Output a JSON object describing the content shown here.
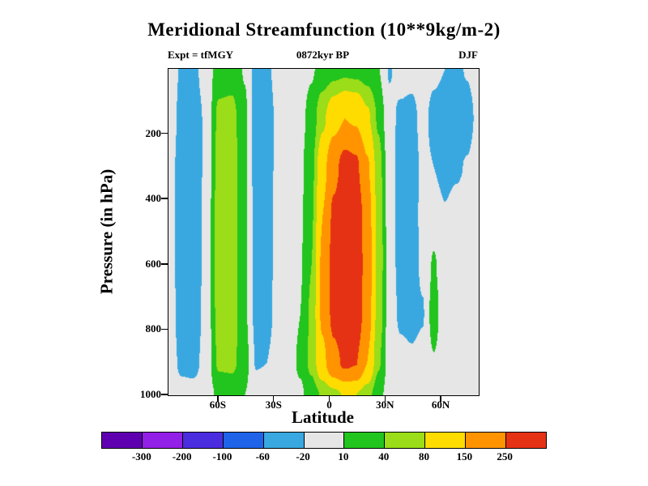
{
  "page": {
    "background": "#ffffff"
  },
  "header": {
    "title": "Meridional Streamfunction (10**9kg/m-2)",
    "left_annotation": "Expt = tfMGY",
    "center_annotation": "0872kyr BP",
    "right_annotation": "DJF"
  },
  "chart_data": {
    "type": "heatmap",
    "title": "Meridional Streamfunction (10**9kg/m-2)",
    "subtitle_left": "Expt = tfMGY",
    "subtitle_center": "0872kyr BP",
    "subtitle_right": "DJF",
    "xlabel": "Latitude",
    "ylabel": "Pressure (in hPa)",
    "xlim": [
      -87,
      80
    ],
    "ylim": [
      0,
      1000
    ],
    "background_color": "#e6e6e6",
    "x_ticks": [
      {
        "value": -60,
        "label": "60S"
      },
      {
        "value": -30,
        "label": "30S"
      },
      {
        "value": 0,
        "label": "0"
      },
      {
        "value": 30,
        "label": "30N"
      },
      {
        "value": 60,
        "label": "60N"
      }
    ],
    "y_ticks": [
      {
        "value": 200,
        "label": "200"
      },
      {
        "value": 400,
        "label": "400"
      },
      {
        "value": 600,
        "label": "600"
      },
      {
        "value": 800,
        "label": "800"
      },
      {
        "value": 1000,
        "label": "1000"
      }
    ],
    "levels": [
      -300,
      -200,
      -100,
      -60,
      -20,
      10,
      40,
      80,
      150,
      250
    ],
    "colors": [
      "#5e00b0",
      "#9320e6",
      "#4b2de0",
      "#1f64e8",
      "#39a8e0",
      "#e6e6e6",
      "#22c41e",
      "#9add18",
      "#ffdc00",
      "#ff9400",
      "#e63214"
    ],
    "colorbar_labels": [
      "-300",
      "-200",
      "-100",
      "-60",
      "-20",
      "10",
      "40",
      "80",
      "150",
      "250"
    ],
    "grid": {
      "lats": [
        -87,
        -80,
        -74,
        -67,
        -60,
        -53,
        -46,
        -40,
        -34,
        -28,
        -22,
        -16,
        -10,
        -4,
        2,
        8,
        14,
        20,
        26,
        32,
        38,
        44,
        50,
        56,
        62,
        68,
        74,
        80
      ],
      "pressures": [
        0,
        150,
        300,
        450,
        600,
        750,
        900,
        1000
      ],
      "values": [
        [
          0,
          -25,
          -28,
          -8,
          25,
          28,
          8,
          -30,
          -26,
          -8,
          -2,
          2,
          8,
          18,
          26,
          30,
          28,
          22,
          12,
          -22,
          -10,
          -12,
          -5,
          -15,
          -20,
          -26,
          -18,
          -6
        ],
        [
          -2,
          -30,
          -35,
          -16,
          48,
          50,
          16,
          -34,
          -34,
          -12,
          -2,
          4,
          18,
          70,
          120,
          150,
          140,
          90,
          35,
          -12,
          -25,
          -28,
          -12,
          -28,
          -34,
          -38,
          -32,
          -12
        ],
        [
          -3,
          -38,
          -40,
          -15,
          54,
          56,
          16,
          -33,
          -35,
          -10,
          -2,
          5,
          28,
          120,
          220,
          290,
          270,
          160,
          55,
          -8,
          -32,
          -34,
          -14,
          -20,
          -28,
          -24,
          -18,
          -6
        ],
        [
          -3,
          -38,
          -40,
          -12,
          55,
          57,
          14,
          -30,
          -33,
          -8,
          0,
          6,
          34,
          150,
          270,
          335,
          325,
          190,
          65,
          -6,
          -33,
          -35,
          -12,
          -8,
          -18,
          -10,
          -6,
          0
        ],
        [
          -3,
          -38,
          -40,
          -12,
          55,
          57,
          14,
          -30,
          -32,
          -8,
          0,
          8,
          40,
          165,
          290,
          345,
          335,
          200,
          65,
          -5,
          -30,
          -33,
          -15,
          14,
          -14,
          -6,
          -2,
          0
        ],
        [
          -3,
          -36,
          -38,
          -12,
          54,
          56,
          15,
          -28,
          -30,
          -8,
          0,
          10,
          46,
          165,
          280,
          335,
          325,
          190,
          60,
          -4,
          -25,
          -28,
          -22,
          26,
          -16,
          -5,
          0,
          0
        ],
        [
          -2,
          -28,
          -30,
          -10,
          46,
          48,
          22,
          -22,
          -20,
          -5,
          2,
          14,
          50,
          130,
          220,
          270,
          255,
          150,
          45,
          -2,
          -12,
          -16,
          -12,
          8,
          -10,
          -3,
          0,
          0
        ],
        [
          0,
          -8,
          -10,
          -4,
          16,
          18,
          10,
          -8,
          -6,
          0,
          2,
          6,
          22,
          45,
          65,
          85,
          80,
          55,
          18,
          0,
          -3,
          -4,
          -3,
          0,
          -3,
          0,
          0,
          0
        ]
      ]
    }
  }
}
